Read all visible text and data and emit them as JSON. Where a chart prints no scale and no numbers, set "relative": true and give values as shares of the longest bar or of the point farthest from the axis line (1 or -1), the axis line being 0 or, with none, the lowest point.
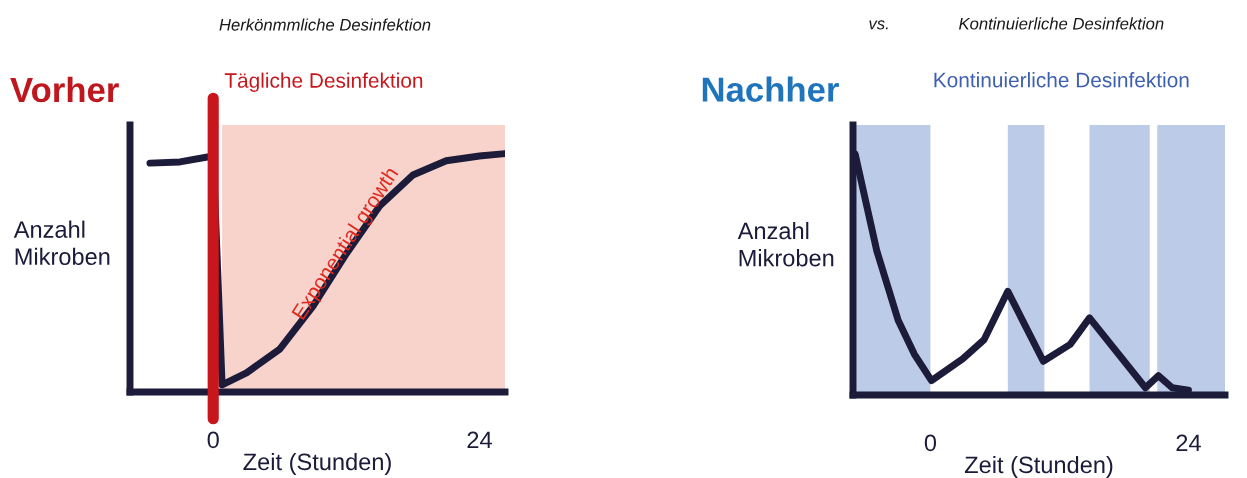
{
  "chart_data": [
    {
      "type": "line",
      "title": "Vorher",
      "subtitle": "Herkönmmliche Desinfektion",
      "xlabel": "Zeit (Stunden)",
      "ylabel": "Anzahl\nMikroben",
      "relative": true,
      "xlim": [
        -7.5,
        26.3
      ],
      "xticks": [
        0,
        24
      ],
      "series": [
        {
          "color": "#1c1c3a",
          "x": [
            -5.7,
            -3,
            0,
            0.8,
            3,
            6,
            9,
            12,
            15,
            18,
            21,
            24,
            26.3
          ],
          "values": [
            0.96,
            0.965,
            0.99,
            0.03,
            0.08,
            0.18,
            0.36,
            0.58,
            0.78,
            0.91,
            0.97,
            0.99,
            1.0
          ]
        }
      ],
      "ref_lines": [
        {
          "axis": "x",
          "value": 0,
          "label": "Tägliche Desinfektion",
          "color": "#c8161d"
        }
      ],
      "bands": [
        {
          "axis": "x",
          "from": 0.8,
          "to": 26.3,
          "color": "#f8d3cb"
        }
      ],
      "annotations": [
        {
          "text": "Exponential growth",
          "x": 12,
          "y": 0.62
        },
        "vs."
      ],
      "grid": false,
      "legend": false
    },
    {
      "type": "line",
      "title": "Nachher",
      "subtitle": "Kontinuierliche Desinfektion",
      "xlabel": "Zeit (Stunden)",
      "ylabel": "Anzahl\nMikroben",
      "relative": true,
      "xlim": [
        -7.2,
        27.4
      ],
      "xticks": [
        0,
        24
      ],
      "series": [
        {
          "color": "#1c1c3a",
          "x": [
            -7,
            -5,
            -3,
            -1.5,
            0.1,
            3,
            5,
            7.2,
            10.5,
            13,
            14.8,
            20,
            21.2,
            22.5,
            24
          ],
          "values": [
            1.0,
            0.6,
            0.31,
            0.17,
            0.06,
            0.15,
            0.23,
            0.43,
            0.14,
            0.21,
            0.32,
            0.03,
            0.08,
            0.03,
            0.02
          ]
        }
      ],
      "bands": [
        {
          "axis": "x",
          "from": -7.2,
          "to": 0,
          "color": "#bccbe8"
        },
        {
          "axis": "x",
          "from": 7.2,
          "to": 10.6,
          "color": "#bccbe8"
        },
        {
          "axis": "x",
          "from": 14.8,
          "to": 20.4,
          "color": "#bccbe8"
        },
        {
          "axis": "x",
          "from": 21.1,
          "to": 27.4,
          "color": "#bccbe8"
        }
      ],
      "annotations": [
        "Kontinuierliche Desinfektion"
      ],
      "grid": false,
      "legend": false
    }
  ]
}
